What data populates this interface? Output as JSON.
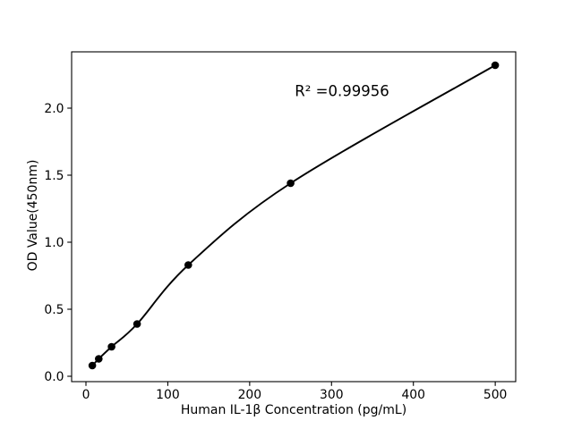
{
  "chart_data": {
    "type": "scatter",
    "title": "",
    "xlabel": "Human IL-1β Concentration (pg/mL)",
    "ylabel": "OD Value(450nm)",
    "annotation": "R² =0.99956",
    "x": [
      7.8,
      15.6,
      31.25,
      62.5,
      125,
      250,
      500
    ],
    "y": [
      0.08,
      0.13,
      0.22,
      0.39,
      0.83,
      1.44,
      2.32
    ],
    "curve": "smooth fitted standard curve through all points",
    "xticks": {
      "values": [
        0,
        100,
        200,
        300,
        400,
        500
      ],
      "labels": [
        "0",
        "100",
        "200",
        "300",
        "400",
        "500"
      ]
    },
    "yticks": {
      "values": [
        0,
        0.5,
        1.0,
        1.5,
        2.0
      ],
      "labels": [
        "0.0",
        "0.5",
        "1.0",
        "1.5",
        "2.0"
      ]
    },
    "xlim": [
      -17.5,
      525
    ],
    "ylim": [
      -0.04,
      2.42
    ],
    "grid": false,
    "legend": "none",
    "frame": "full-box",
    "colors": {
      "marker": "#000000",
      "line": "#000000",
      "axes": "#000000",
      "text": "#000000",
      "background": "#ffffff"
    }
  }
}
